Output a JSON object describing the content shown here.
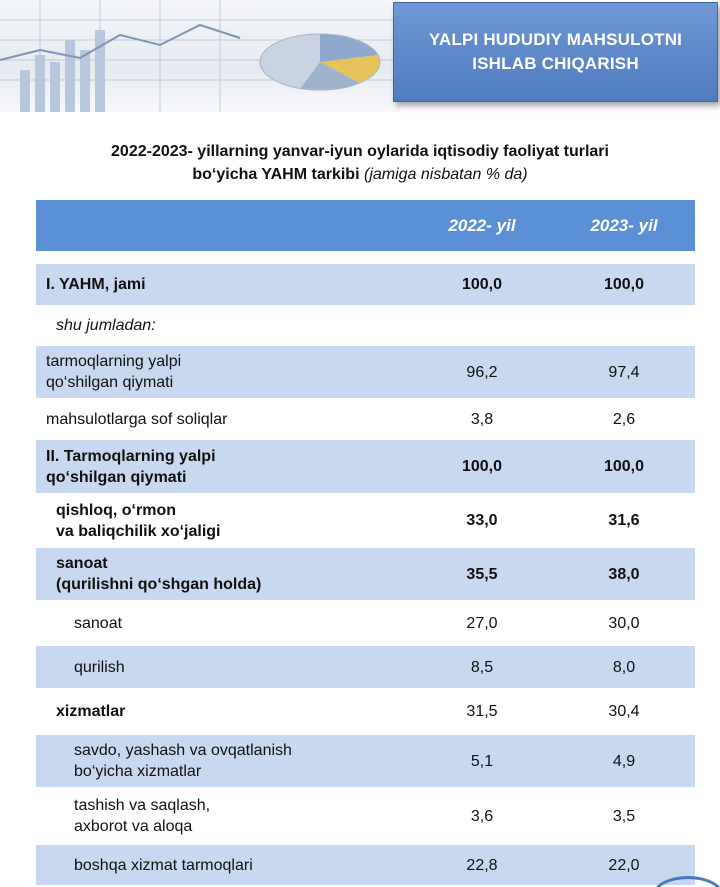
{
  "header": {
    "title": "YALPI HUDUDIY MAHSULOTNI\nISHLAB CHIQARISH"
  },
  "subtitle": {
    "line1": "2022-2023- yillarning yanvar-iyun oylarida iqtisodiy faoliyat turlari",
    "line2_bold": "bo‘yicha YAHM tarkibi",
    "line2_italic": "(jamiga nisbatan % da)"
  },
  "table": {
    "columns": [
      "",
      "2022- yil",
      "2023- yil"
    ],
    "rows": [
      {
        "label": "I. YAHM, jami",
        "y2022": "100,0",
        "y2023": "100,0"
      },
      {
        "label": "shu jumladan:",
        "y2022": "",
        "y2023": ""
      },
      {
        "label": "tarmoqlarning yalpi\nqo‘shilgan qiymati",
        "y2022": "96,2",
        "y2023": "97,4"
      },
      {
        "label": "mahsulotlarga sof soliqlar",
        "y2022": "3,8",
        "y2023": "2,6"
      },
      {
        "label": "II. Tarmoqlarning yalpi\nqo‘shilgan qiymati",
        "y2022": "100,0",
        "y2023": "100,0"
      },
      {
        "label": "qishloq, o‘rmon\nva baliqchilik xo‘jaligi",
        "y2022": "33,0",
        "y2023": "31,6"
      },
      {
        "label": "sanoat\n(qurilishni qo‘shgan holda)",
        "y2022": "35,5",
        "y2023": "38,0"
      },
      {
        "label": "sanoat",
        "y2022": "27,0",
        "y2023": "30,0"
      },
      {
        "label": "qurilish",
        "y2022": "8,5",
        "y2023": "8,0"
      },
      {
        "label": "xizmatlar",
        "y2022": "31,5",
        "y2023": "30,4"
      },
      {
        "label": "savdo, yashash va ovqatlanish\nbo‘yicha xizmatlar",
        "y2022": "5,1",
        "y2023": "4,9"
      },
      {
        "label": "tashish va saqlash,\naxborot va aloqa",
        "y2022": "3,6",
        "y2023": "3,5"
      },
      {
        "label": "boshqa xizmat tarmoqlari",
        "y2022": "22,8",
        "y2023": "22,0"
      }
    ]
  },
  "colors": {
    "header_blue": "#5b8fd6",
    "row_shade": "#c7d8f0",
    "title_box": "#4f7cc0"
  }
}
